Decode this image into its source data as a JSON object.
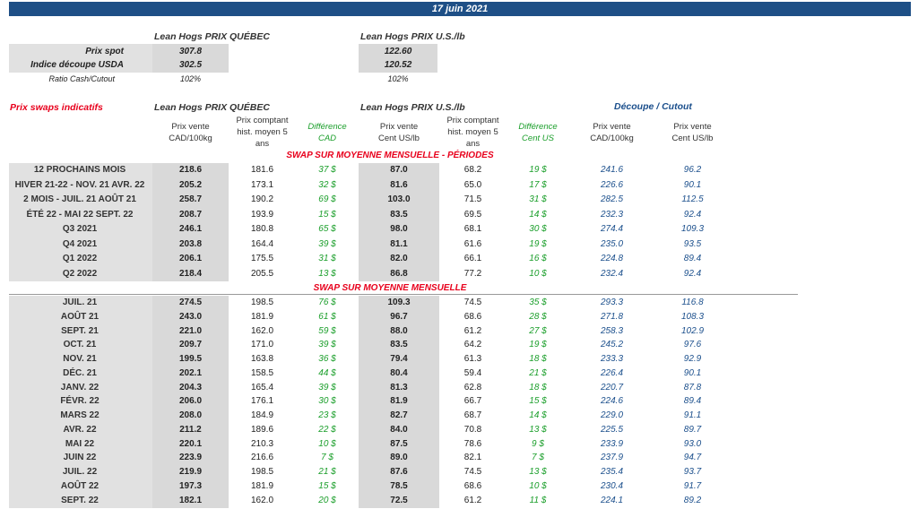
{
  "header": {
    "date": "17 juin 2021"
  },
  "spot": {
    "quebec_title": "Lean Hogs PRIX QUÉBEC",
    "us_title": "Lean Hogs PRIX U.S./lb",
    "rows": [
      {
        "label": "Prix spot",
        "quebec": "307.8",
        "us": "122.60"
      },
      {
        "label": "Indice découpe USDA",
        "quebec": "302.5",
        "us": "120.52"
      },
      {
        "label": "Ratio Cash/Cutout",
        "quebec": "102%",
        "us": "102%"
      }
    ]
  },
  "swaps": {
    "title": "Prix swaps indicatifs",
    "quebec_title": "Lean Hogs PRIX QUÉBEC",
    "us_title": "Lean Hogs PRIX U.S./lb",
    "cutout_title": "Découpe / Cutout",
    "col_headers": {
      "qc_price_1": "Prix vente",
      "qc_price_2": "CAD/100kg",
      "qc_hist_1": "Prix comptant",
      "qc_hist_2": "hist. moyen 5",
      "qc_hist_3": "ans",
      "qc_diff_1": "Différence",
      "qc_diff_2": "CAD",
      "us_price_1": "Prix vente",
      "us_price_2": "Cent US/lb",
      "us_hist_1": "Prix comptant",
      "us_hist_2": "hist. moyen 5",
      "us_hist_3": "ans",
      "us_diff_1": "Différence",
      "us_diff_2": "Cent US",
      "cut_cad_1": "Prix vente",
      "cut_cad_2": "CAD/100kg",
      "cut_us_1": "Prix vente",
      "cut_us_2": "Cent US/lb"
    },
    "section_periods": "SWAP SUR MOYENNE MENSUELLE - PÉRIODES",
    "section_monthly": "SWAP SUR MOYENNE MENSUELLE",
    "periods": [
      [
        "12 PROCHAINS MOIS",
        "218.6",
        "181.6",
        "37 $",
        "87.0",
        "68.2",
        "19 $",
        "241.6",
        "96.2"
      ],
      [
        "HIVER 21-22 - NOV. 21 AVR. 22",
        "205.2",
        "173.1",
        "32 $",
        "81.6",
        "65.0",
        "17 $",
        "226.6",
        "90.1"
      ],
      [
        "2 MOIS - JUIL. 21 AOÛT 21",
        "258.7",
        "190.2",
        "69 $",
        "103.0",
        "71.5",
        "31 $",
        "282.5",
        "112.5"
      ],
      [
        "ÉTÉ 22 - MAI 22 SEPT. 22",
        "208.7",
        "193.9",
        "15 $",
        "83.5",
        "69.5",
        "14 $",
        "232.3",
        "92.4"
      ],
      [
        "Q3 2021",
        "246.1",
        "180.8",
        "65 $",
        "98.0",
        "68.1",
        "30 $",
        "274.4",
        "109.3"
      ],
      [
        "Q4 2021",
        "203.8",
        "164.4",
        "39 $",
        "81.1",
        "61.6",
        "19 $",
        "235.0",
        "93.5"
      ],
      [
        "Q1 2022",
        "206.1",
        "175.5",
        "31 $",
        "82.0",
        "66.1",
        "16 $",
        "224.8",
        "89.4"
      ],
      [
        "Q2 2022",
        "218.4",
        "205.5",
        "13 $",
        "86.8",
        "77.2",
        "10 $",
        "232.4",
        "92.4"
      ]
    ],
    "monthly": [
      [
        "JUIL. 21",
        "274.5",
        "198.5",
        "76 $",
        "109.3",
        "74.5",
        "35 $",
        "293.3",
        "116.8"
      ],
      [
        "AOÛT 21",
        "243.0",
        "181.9",
        "61 $",
        "96.7",
        "68.6",
        "28 $",
        "271.8",
        "108.3"
      ],
      [
        "SEPT. 21",
        "221.0",
        "162.0",
        "59 $",
        "88.0",
        "61.2",
        "27 $",
        "258.3",
        "102.9"
      ],
      [
        "OCT. 21",
        "209.7",
        "171.0",
        "39 $",
        "83.5",
        "64.2",
        "19 $",
        "245.2",
        "97.6"
      ],
      [
        "NOV. 21",
        "199.5",
        "163.8",
        "36 $",
        "79.4",
        "61.3",
        "18 $",
        "233.3",
        "92.9"
      ],
      [
        "DÉC. 21",
        "202.1",
        "158.5",
        "44 $",
        "80.4",
        "59.4",
        "21 $",
        "226.4",
        "90.1"
      ],
      [
        "JANV. 22",
        "204.3",
        "165.4",
        "39 $",
        "81.3",
        "62.8",
        "18 $",
        "220.7",
        "87.8"
      ],
      [
        "FÉVR. 22",
        "206.0",
        "176.1",
        "30 $",
        "81.9",
        "66.7",
        "15 $",
        "224.6",
        "89.4"
      ],
      [
        "MARS 22",
        "208.0",
        "184.9",
        "23 $",
        "82.7",
        "68.7",
        "14 $",
        "229.0",
        "91.1"
      ],
      [
        "AVR. 22",
        "211.2",
        "189.6",
        "22 $",
        "84.0",
        "70.8",
        "13 $",
        "225.5",
        "89.7"
      ],
      [
        "MAI 22",
        "220.1",
        "210.3",
        "10 $",
        "87.5",
        "78.6",
        "9 $",
        "233.9",
        "93.0"
      ],
      [
        "JUIN 22",
        "223.9",
        "216.6",
        "7 $",
        "89.0",
        "82.1",
        "7 $",
        "237.9",
        "94.7"
      ],
      [
        "JUIL. 22",
        "219.9",
        "198.5",
        "21 $",
        "87.6",
        "74.5",
        "13 $",
        "235.4",
        "93.7"
      ],
      [
        "AOÛT 22",
        "197.3",
        "181.9",
        "15 $",
        "78.5",
        "68.6",
        "10 $",
        "230.4",
        "91.7"
      ],
      [
        "SEPT. 22",
        "182.1",
        "162.0",
        "20 $",
        "72.5",
        "61.2",
        "11 $",
        "224.1",
        "89.2"
      ]
    ]
  }
}
